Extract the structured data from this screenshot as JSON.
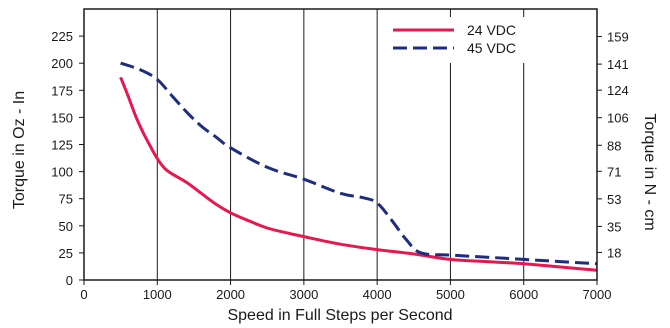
{
  "chart_data": {
    "type": "line",
    "xlabel": "Speed in Full Steps per Second",
    "ylabel": "Torque in Oz - In",
    "y2label": "Torque in N - cm",
    "xlim": [
      0,
      7000
    ],
    "ylim": [
      0,
      250
    ],
    "x_ticks": [
      "0",
      "1000",
      "2000",
      "3000",
      "4000",
      "5000",
      "6000",
      "7000"
    ],
    "y_ticks": [
      "0",
      "25",
      "50",
      "75",
      "100",
      "125",
      "150",
      "175",
      "200",
      "225"
    ],
    "y2_ticks": [
      "18",
      "35",
      "53",
      "71",
      "88",
      "106",
      "124",
      "141",
      "159"
    ],
    "grid": "vertical",
    "legend_position": "top-right",
    "series": [
      {
        "name": "24 VDC",
        "color": "#e8174f",
        "style": "solid",
        "x": [
          500,
          600,
          700,
          800,
          900,
          1000,
          1100,
          1200,
          1400,
          1600,
          1800,
          2000,
          2200,
          2500,
          2800,
          3000,
          3500,
          4000,
          4500,
          5000,
          5500,
          6000,
          6500,
          7000
        ],
        "y": [
          187,
          170,
          152,
          137,
          124,
          112,
          103,
          98,
          90,
          80,
          70,
          62,
          56,
          48,
          43,
          40,
          33,
          28,
          24,
          19,
          17,
          15,
          12,
          9
        ]
      },
      {
        "name": "45 VDC",
        "color": "#1f2d7f",
        "style": "dashed",
        "x": [
          500,
          600,
          800,
          1000,
          1200,
          1400,
          1600,
          1800,
          2000,
          2500,
          3000,
          3500,
          3800,
          4000,
          4200,
          4400,
          4600,
          5000,
          5500,
          6000,
          6500,
          7000
        ],
        "y": [
          200,
          198,
          193,
          185,
          170,
          155,
          142,
          132,
          122,
          104,
          93,
          80,
          76,
          71,
          55,
          37,
          25,
          23,
          21,
          19,
          17,
          15
        ]
      }
    ]
  }
}
